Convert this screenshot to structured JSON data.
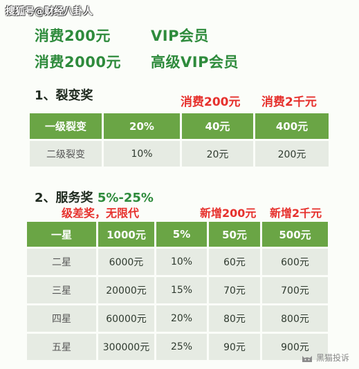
{
  "watermark": "搜狐号@财经八卦人",
  "tiers": [
    {
      "spend": "消费200元",
      "level": "VIP会员"
    },
    {
      "spend": "消费2000元",
      "level": "高级VIP会员"
    }
  ],
  "fission": {
    "title": "1、裂变奖",
    "notes": [
      "消费200元",
      "消费2千元"
    ],
    "header": [
      "一级裂变",
      "20%",
      "40元",
      "400元"
    ],
    "rows": [
      [
        "二级裂变",
        "10%",
        "20元",
        "200元"
      ]
    ]
  },
  "service": {
    "title": "2、服务奖",
    "range": "5%-25%",
    "note_left": "级差奖，无限代",
    "notes": [
      "新增200元",
      "新增2千元"
    ],
    "header": [
      "一星",
      "1000元",
      "5%",
      "50元",
      "500元"
    ],
    "rows": [
      [
        "二星",
        "6000元",
        "10%",
        "60元",
        "600元"
      ],
      [
        "三星",
        "20000元",
        "15%",
        "70元",
        "700元"
      ],
      [
        "四星",
        "60000元",
        "20%",
        "80元",
        "800元"
      ],
      [
        "五星",
        "300000元",
        "25%",
        "90元",
        "900元"
      ]
    ]
  },
  "logo": {
    "text": "黑猫投诉",
    "icon": "black-cat-icon"
  }
}
